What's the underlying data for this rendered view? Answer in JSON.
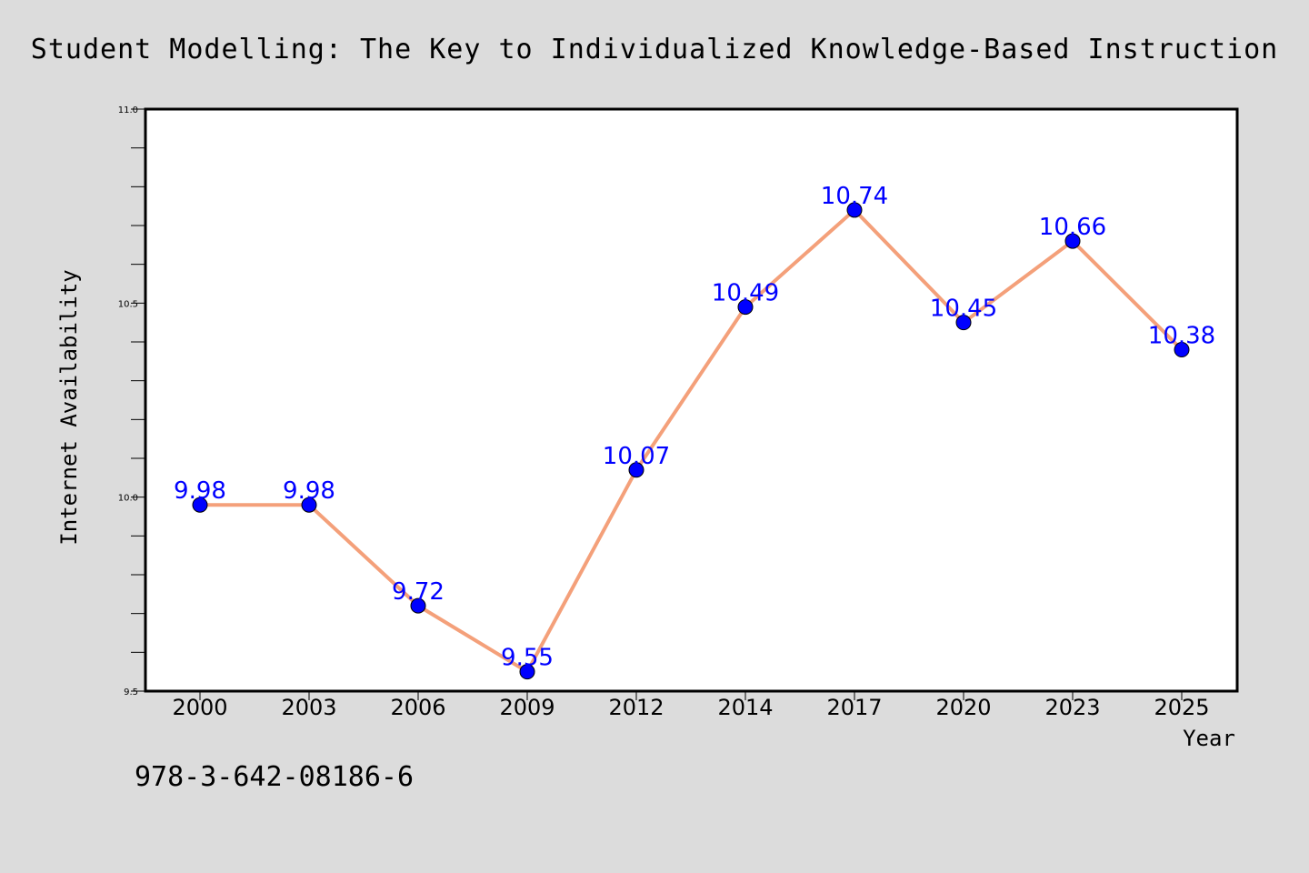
{
  "chart_data": {
    "type": "line",
    "title": "Student Modelling: The Key to Individualized Knowledge-Based Instruction",
    "xlabel": "Year",
    "ylabel": "Internet Availability",
    "categories": [
      "2000",
      "2003",
      "2006",
      "2009",
      "2012",
      "2014",
      "2017",
      "2020",
      "2023",
      "2025"
    ],
    "series": [
      {
        "values": [
          9.98,
          9.98,
          9.72,
          9.55,
          10.07,
          10.49,
          10.74,
          10.45,
          10.66,
          10.38
        ],
        "line_color": "#f4a07a",
        "marker_color": "#0000ff"
      }
    ],
    "data_labels": [
      "9.98",
      "9.98",
      "9.72",
      "9.55",
      "10.07",
      "10.49",
      "10.74",
      "10.45",
      "10.66",
      "10.38"
    ],
    "ylim": [
      9.5,
      11.0
    ],
    "yticks": [
      "9.5",
      "10.0",
      "10.5",
      "11.0"
    ],
    "grid": false,
    "legend": "none"
  },
  "footer": {
    "isbn": "978-3-642-08186-6"
  },
  "colors": {
    "background": "#dcdcdc",
    "plot_background": "#ffffff",
    "line": "#f4a07a",
    "marker": "#0000ff",
    "data_label": "#0000ff"
  }
}
